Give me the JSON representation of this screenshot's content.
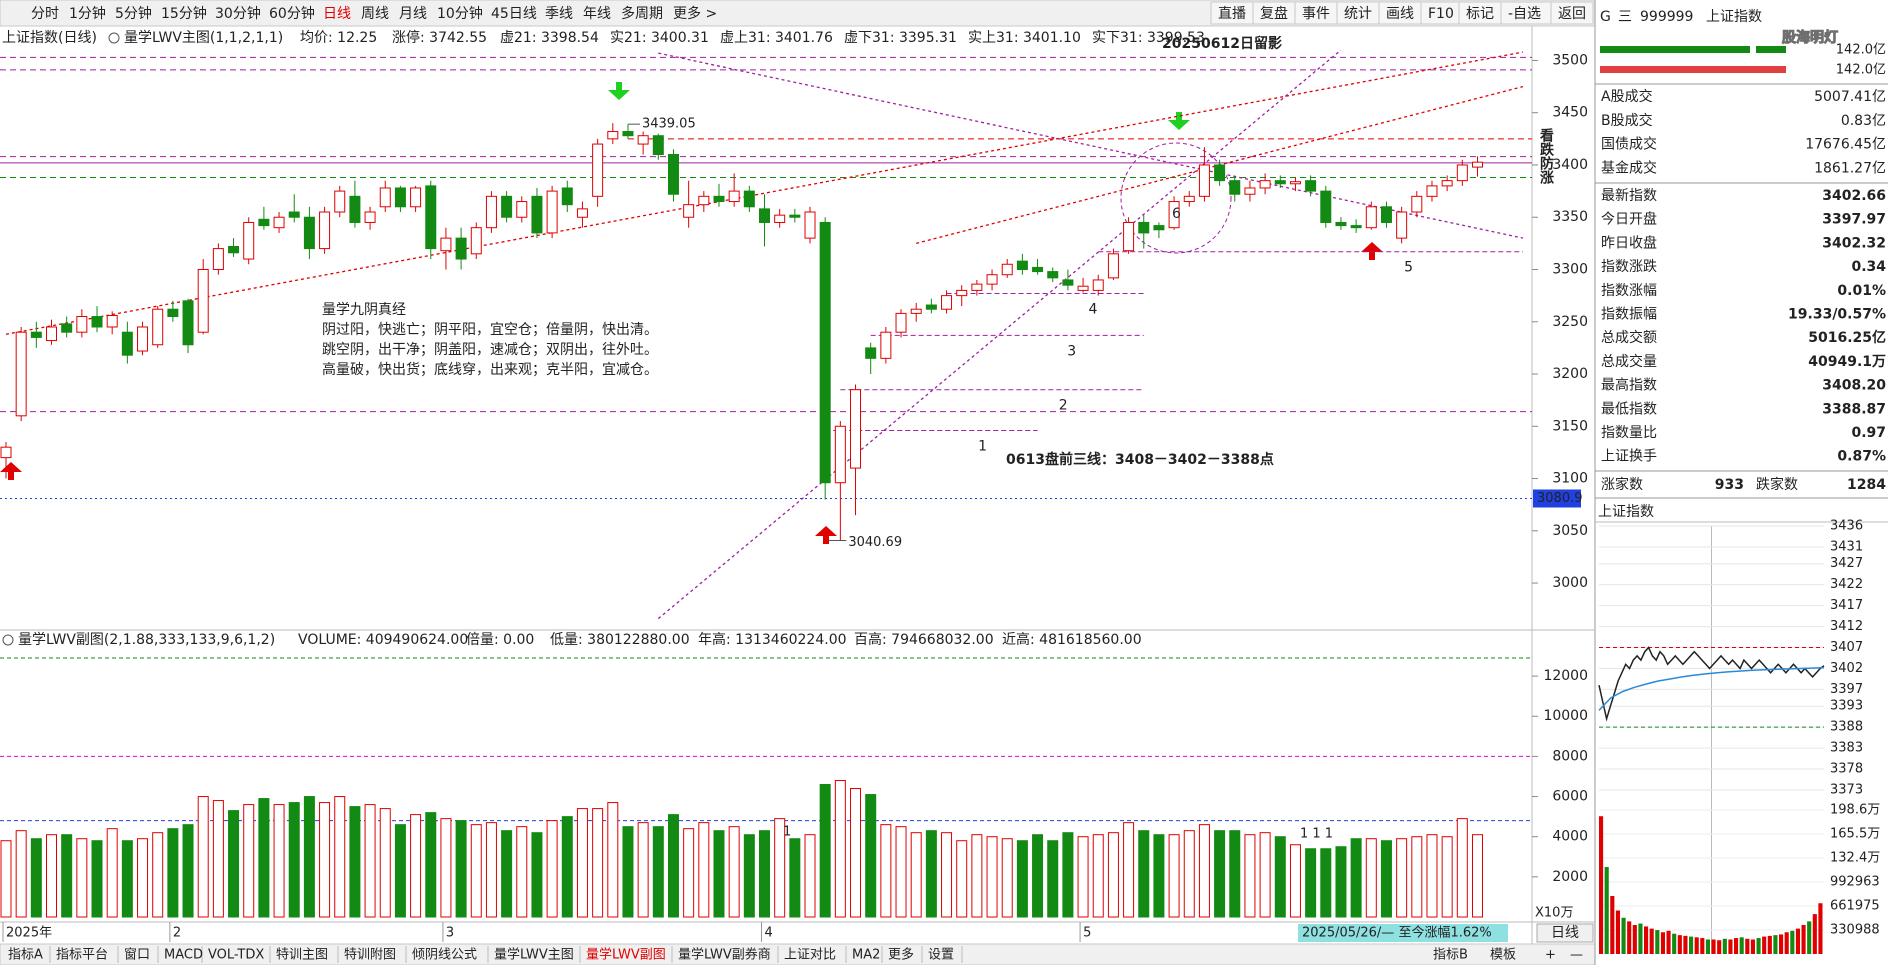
{
  "toolbar": {
    "periods": [
      "分时",
      "1分钟",
      "5分钟",
      "15分钟",
      "30分钟",
      "60分钟",
      "日线",
      "周线",
      "月线",
      "10分钟",
      "45日线",
      "季线",
      "年线",
      "多周期",
      "更多 >"
    ],
    "tools": [
      "直播",
      "复盘",
      "事件",
      "统计",
      "画线",
      "F10",
      "标记",
      "-自选",
      "返回"
    ]
  },
  "chart_header": {
    "title": "上证指数(日线)",
    "indicator": "量学LWV主图(1,1,2,1,1)",
    "items": [
      {
        "text": "均价: 12.25",
        "color": "#333333"
      },
      {
        "text": "涨停: 3742.55",
        "color": "#e00000"
      },
      {
        "text": "虚21: 3398.54",
        "color": "#0000e0"
      },
      {
        "text": "实21: 3400.31",
        "color": "#e00000"
      },
      {
        "text": "虚上31: 3401.76",
        "color": "#e000e0"
      },
      {
        "text": "虚下31: 3395.31",
        "color": "#0000e0"
      },
      {
        "text": "实上31: 3401.10",
        "color": "#e00000"
      },
      {
        "text": "实下31: 3399.53",
        "color": "#e000e0"
      }
    ]
  },
  "price_chart": {
    "type": "candlestick",
    "up_color": "#e00000",
    "down_color": "#138a13",
    "categories": [
      "2025年",
      null,
      null,
      null,
      null,
      null,
      null,
      null,
      null,
      null,
      null,
      "2",
      null,
      null,
      null,
      null,
      null,
      null,
      null,
      null,
      null,
      null,
      null,
      null,
      null,
      null,
      null,
      null,
      null,
      "3",
      null,
      null,
      null,
      null,
      null,
      null,
      null,
      null,
      null,
      null,
      null,
      null,
      null,
      null,
      null,
      null,
      null,
      null,
      null,
      null,
      "4",
      null,
      null,
      null,
      null,
      null,
      null,
      null,
      null,
      null,
      null,
      null,
      null,
      null,
      null,
      null,
      null,
      null,
      null,
      null,
      null,
      "5",
      null,
      null,
      null,
      null,
      null,
      null,
      null,
      null,
      null,
      null,
      null,
      null,
      null,
      null,
      null,
      null,
      null,
      null,
      null,
      null,
      null,
      null,
      null,
      null,
      null,
      null
    ],
    "ohlc": [
      [
        3120,
        3135,
        3100,
        3130
      ],
      [
        3160,
        3245,
        3155,
        3240
      ],
      [
        3240,
        3250,
        3225,
        3235
      ],
      [
        3232,
        3252,
        3228,
        3245
      ],
      [
        3248,
        3255,
        3235,
        3240
      ],
      [
        3240,
        3262,
        3235,
        3255
      ],
      [
        3255,
        3265,
        3240,
        3245
      ],
      [
        3245,
        3260,
        3238,
        3256
      ],
      [
        3240,
        3250,
        3210,
        3218
      ],
      [
        3222,
        3250,
        3218,
        3245
      ],
      [
        3228,
        3265,
        3225,
        3262
      ],
      [
        3262,
        3270,
        3250,
        3255
      ],
      [
        3270,
        3272,
        3220,
        3228
      ],
      [
        3240,
        3310,
        3238,
        3300
      ],
      [
        3300,
        3325,
        3295,
        3320
      ],
      [
        3322,
        3330,
        3312,
        3316
      ],
      [
        3310,
        3350,
        3305,
        3345
      ],
      [
        3348,
        3360,
        3338,
        3342
      ],
      [
        3340,
        3355,
        3335,
        3350
      ],
      [
        3355,
        3372,
        3345,
        3350
      ],
      [
        3350,
        3360,
        3310,
        3320
      ],
      [
        3320,
        3360,
        3315,
        3355
      ],
      [
        3355,
        3380,
        3350,
        3375
      ],
      [
        3370,
        3385,
        3340,
        3345
      ],
      [
        3345,
        3360,
        3338,
        3355
      ],
      [
        3360,
        3385,
        3355,
        3378
      ],
      [
        3378,
        3380,
        3355,
        3360
      ],
      [
        3360,
        3380,
        3355,
        3378
      ],
      [
        3380,
        3385,
        3310,
        3320
      ],
      [
        3318,
        3340,
        3300,
        3330
      ],
      [
        3330,
        3340,
        3300,
        3310
      ],
      [
        3315,
        3345,
        3310,
        3340
      ],
      [
        3340,
        3375,
        3335,
        3370
      ],
      [
        3370,
        3375,
        3345,
        3350
      ],
      [
        3350,
        3370,
        3345,
        3365
      ],
      [
        3370,
        3378,
        3330,
        3335
      ],
      [
        3335,
        3380,
        3330,
        3375
      ],
      [
        3378,
        3385,
        3355,
        3362
      ],
      [
        3350,
        3365,
        3340,
        3358
      ],
      [
        3370,
        3425,
        3360,
        3420
      ],
      [
        3425,
        3440,
        3420,
        3432
      ],
      [
        3432,
        3439.05,
        3425,
        3428
      ],
      [
        3420,
        3432,
        3410,
        3428
      ],
      [
        3428,
        3430,
        3405,
        3410
      ],
      [
        3410,
        3415,
        3365,
        3372
      ],
      [
        3350,
        3385,
        3340,
        3362
      ],
      [
        3362,
        3375,
        3355,
        3370
      ],
      [
        3370,
        3382,
        3360,
        3365
      ],
      [
        3365,
        3392,
        3360,
        3375
      ],
      [
        3375,
        3380,
        3355,
        3360
      ],
      [
        3358,
        3372,
        3322,
        3345
      ],
      [
        3345,
        3358,
        3340,
        3352
      ],
      [
        3352,
        3358,
        3345,
        3350
      ],
      [
        3330,
        3360,
        3325,
        3355
      ],
      [
        3345,
        3350,
        3080,
        3096
      ],
      [
        3096,
        3155,
        3040.69,
        3150
      ],
      [
        3110,
        3190,
        3065,
        3185
      ],
      [
        3225,
        3230,
        3200,
        3215
      ],
      [
        3215,
        3245,
        3210,
        3240
      ],
      [
        3240,
        3262,
        3235,
        3258
      ],
      [
        3258,
        3268,
        3250,
        3262
      ],
      [
        3266,
        3272,
        3258,
        3262
      ],
      [
        3262,
        3280,
        3258,
        3275
      ],
      [
        3275,
        3285,
        3265,
        3280
      ],
      [
        3280,
        3290,
        3275,
        3286
      ],
      [
        3286,
        3300,
        3280,
        3295
      ],
      [
        3295,
        3310,
        3292,
        3305
      ],
      [
        3308,
        3315,
        3295,
        3300
      ],
      [
        3302,
        3310,
        3295,
        3298
      ],
      [
        3298,
        3302,
        3288,
        3292
      ],
      [
        3290,
        3300,
        3280,
        3285
      ],
      [
        3280,
        3292,
        3278,
        3284
      ],
      [
        3280,
        3295,
        3275,
        3290
      ],
      [
        3292,
        3320,
        3290,
        3315
      ],
      [
        3318,
        3350,
        3315,
        3345
      ],
      [
        3345,
        3352,
        3320,
        3335
      ],
      [
        3342,
        3345,
        3330,
        3338
      ],
      [
        3340,
        3370,
        3338,
        3365
      ],
      [
        3365,
        3375,
        3360,
        3370
      ],
      [
        3370,
        3417,
        3365,
        3400
      ],
      [
        3400,
        3405,
        3380,
        3385
      ],
      [
        3385,
        3390,
        3365,
        3372
      ],
      [
        3372,
        3385,
        3365,
        3378
      ],
      [
        3378,
        3392,
        3372,
        3385
      ],
      [
        3385,
        3390,
        3378,
        3382
      ],
      [
        3382,
        3388,
        3375,
        3384
      ],
      [
        3385,
        3390,
        3370,
        3375
      ],
      [
        3375,
        3380,
        3340,
        3345
      ],
      [
        3345,
        3350,
        3338,
        3342
      ],
      [
        3342,
        3348,
        3335,
        3340
      ],
      [
        3340,
        3365,
        3338,
        3360
      ],
      [
        3360,
        3365,
        3340,
        3345
      ],
      [
        3330,
        3360,
        3325,
        3355
      ],
      [
        3355,
        3375,
        3350,
        3370
      ],
      [
        3370,
        3385,
        3365,
        3380
      ],
      [
        3380,
        3390,
        3375,
        3385
      ],
      [
        3385,
        3405,
        3380,
        3400
      ],
      [
        3397.97,
        3408.2,
        3388.87,
        3402.66
      ]
    ],
    "ylim": [
      2957,
      3510
    ],
    "yticks": [
      3000,
      3050,
      3100,
      3150,
      3200,
      3250,
      3300,
      3350,
      3400,
      3450,
      3500
    ],
    "hlines": [
      {
        "value": 3503,
        "color": "#a020a0",
        "style": "dashed"
      },
      {
        "value": 3491,
        "color": "#a020a0",
        "style": "dashed"
      },
      {
        "value": 3425,
        "color": "#e00000",
        "style": "dashed",
        "from": 41
      },
      {
        "value": 3408,
        "color": "#a020a0",
        "style": "dashed"
      },
      {
        "value": 3402,
        "color": "#a020a0",
        "style": "solid"
      },
      {
        "value": 3388,
        "color": "#138a13",
        "style": "dashed"
      },
      {
        "value": 3164,
        "color": "#a020a0",
        "style": "dashed"
      },
      {
        "value": 3080.9,
        "color": "#2040e0",
        "style": "dotted",
        "tagged": true
      }
    ],
    "levels": [
      {
        "label": "1",
        "value": 3146,
        "from": 54,
        "to": 68
      },
      {
        "label": "2",
        "value": 3185,
        "from": 55,
        "to": 75
      },
      {
        "label": "3",
        "value": 3237,
        "from": 57,
        "to": 75
      },
      {
        "label": "4",
        "value": 3277,
        "from": 62,
        "to": 75
      },
      {
        "label": "5",
        "value": 3317,
        "from": 72,
        "to": 100
      }
    ],
    "trendlines": [
      {
        "color": "#e00000",
        "points": [
          [
            0,
            3238
          ],
          [
            100,
            3508
          ]
        ]
      },
      {
        "color": "#e00000",
        "points": [
          [
            60,
            3325
          ],
          [
            100,
            3475
          ]
        ]
      },
      {
        "color": "#a020a0",
        "points": [
          [
            43,
            3507
          ],
          [
            100,
            3330
          ]
        ]
      },
      {
        "color": "#a020a0",
        "points": [
          [
            43,
            2966
          ],
          [
            88,
            3510
          ]
        ]
      }
    ],
    "annotations": {
      "stamp": "20250612日留影",
      "vertical": "看跌防涨",
      "forecast": "0613盘前三线：3408－3402－3388点",
      "verse_title": "量学九阴真经",
      "verse": [
        "阴过阳，快逃亡；阴平阳，宜空仓；倍量阴，快出清。",
        "跳空阴，出干净；阴盖阳，速减仓；双阴出，往外吐。",
        "高量破，快出货；底线穿，出来观；克半阳，宜减仓。"
      ],
      "circle_label": "6",
      "high_label": 3439.05,
      "low_label": 3040.69
    }
  },
  "volume_chart": {
    "type": "bar",
    "header_title": "量学LWV副图(2,1.88,333,133,9,6,1,2)",
    "header": [
      {
        "text": "VOLUME: 409490624.00",
        "color": "#333333"
      },
      {
        "text": "倍量: 0.00",
        "color": "#e00000"
      },
      {
        "text": "低量: 380122880.00",
        "color": "#e00000"
      },
      {
        "text": "年高: 1313460224.00",
        "color": "#138a13"
      },
      {
        "text": "百高: 794668032.00",
        "color": "#e000e0"
      },
      {
        "text": "近高: 481618560.00",
        "color": "#0000e0"
      }
    ],
    "values": [
      3800,
      4300,
      3900,
      4100,
      4100,
      3900,
      3800,
      4400,
      3800,
      3900,
      4200,
      4400,
      4600,
      6000,
      5800,
      5300,
      5600,
      5900,
      5600,
      5700,
      6000,
      5700,
      6000,
      5500,
      5600,
      5400,
      4600,
      5100,
      5200,
      4900,
      4800,
      4600,
      4700,
      4300,
      4500,
      4200,
      4800,
      5000,
      5400,
      5400,
      5700,
      4500,
      4700,
      4500,
      5100,
      4400,
      4700,
      4300,
      4500,
      4100,
      4300,
      4900,
      3900,
      4100,
      6600,
      6800,
      6400,
      6100,
      4600,
      4500,
      4200,
      4300,
      4200,
      3800,
      4100,
      4000,
      3900,
      3800,
      4100,
      3800,
      4200,
      4000,
      4100,
      4200,
      4700,
      4300,
      4100,
      4100,
      4300,
      4600,
      4300,
      4300,
      4100,
      4200,
      4000,
      3600,
      3400,
      3400,
      3500,
      3900,
      3900,
      3800,
      3900,
      4000,
      4100,
      4000,
      4900,
      4100
    ],
    "ylim": [
      0,
      13300
    ],
    "yticks": [
      2000,
      4000,
      6000,
      8000,
      10000,
      12000
    ],
    "hlines": [
      {
        "value": 12900,
        "color": "#138a13"
      },
      {
        "value": 8000,
        "color": "#e000e0"
      },
      {
        "value": 4800,
        "color": "#2040e0"
      }
    ],
    "unit": "X10万",
    "flags": [
      "1",
      "1 1 1"
    ]
  },
  "x_axis": {
    "range_label": "2025/05/26/— 至今涨幅1.62%",
    "period_button": "日线"
  },
  "side_panel": {
    "logo": "G",
    "menu": "三",
    "code": "999999",
    "name": "上证指数",
    "watermark": "股海明灯",
    "bar_values": [
      "142.0亿",
      "142.0亿"
    ],
    "turnover": [
      {
        "label": "A股成交",
        "value": "5007.41亿"
      },
      {
        "label": "B股成交",
        "value": "0.83亿"
      },
      {
        "label": "国债成交",
        "value": "17676.45亿"
      },
      {
        "label": "基金成交",
        "value": "1861.27亿"
      }
    ],
    "stats": [
      {
        "label": "最新指数",
        "value": "3402.66",
        "color": "#e00000"
      },
      {
        "label": "今日开盘",
        "value": "3397.97",
        "color": "#138a13"
      },
      {
        "label": "昨日收盘",
        "value": "3402.32",
        "color": "#111111"
      },
      {
        "label": "指数涨跌",
        "value": "0.34",
        "color": "#e00000"
      },
      {
        "label": "指数涨幅",
        "value": "0.01%",
        "color": "#e00000"
      },
      {
        "label": "指数振幅",
        "value": "19.33/0.57%",
        "color": "#111111"
      },
      {
        "label": "总成交额",
        "value": "5016.25亿",
        "color": "#111111"
      },
      {
        "label": "总成交量",
        "value": "40949.1万",
        "color": "#111111"
      },
      {
        "label": "最高指数",
        "value": "3408.20",
        "color": "#e00000"
      },
      {
        "label": "最低指数",
        "value": "3388.87",
        "color": "#138a13"
      },
      {
        "label": "指数量比",
        "value": "0.97",
        "color": "#e00000"
      },
      {
        "label": "上证换手",
        "value": "0.87%",
        "color": "#111111"
      }
    ],
    "breadth": {
      "up_label": "涨家数",
      "up": 933,
      "down_label": "跌家数",
      "down": 1284
    },
    "mini_title": "上证指数",
    "mini_chart": {
      "type": "line",
      "ylim": [
        3373,
        3436
      ],
      "yticks": [
        3436,
        3431,
        3427,
        3422,
        3417,
        3412,
        3407,
        3402,
        3397,
        3393,
        3388,
        3383,
        3378,
        3373
      ],
      "ytick_colors": [
        "#e00000",
        "#e00000",
        "#e00000",
        "#e00000",
        "#e00000",
        "#e00000",
        "#e00000",
        "#111111",
        "#138a13",
        "#138a13",
        "#138a13",
        "#138a13",
        "#138a13",
        "#138a13"
      ],
      "hlines": [
        {
          "value": 3407,
          "color": "#e00000"
        },
        {
          "value": 3388,
          "color": "#138a13"
        }
      ],
      "prices": [
        3398,
        3394,
        3390,
        3393,
        3396,
        3399,
        3401,
        3403,
        3402,
        3404,
        3405,
        3404,
        3406,
        3407,
        3405,
        3404,
        3406,
        3405,
        3403,
        3404,
        3405,
        3404,
        3403,
        3404,
        3405,
        3406,
        3405,
        3404,
        3403,
        3402,
        3403,
        3404,
        3405,
        3404,
        3403,
        3404,
        3403,
        3402,
        3404,
        3403,
        3402,
        3403,
        3404,
        3403,
        3402,
        3401,
        3402,
        3403,
        3402,
        3401,
        3402,
        3403,
        3402,
        3401,
        3402,
        3401,
        3400,
        3401,
        3402,
        3402.66
      ],
      "avg": [
        3392,
        3395,
        3396.5,
        3397.5,
        3398.3,
        3399,
        3399.5,
        3400,
        3400.4,
        3400.7,
        3401,
        3401.2,
        3401.4,
        3401.6,
        3401.7,
        3401.8,
        3401.9,
        3402,
        3402.1,
        3402.2
      ],
      "volumes": [
        1900000,
        1200000,
        800000,
        600000,
        500000,
        450000,
        400000,
        420000,
        380000,
        350000,
        330000,
        300000,
        320000,
        280000,
        260000,
        250000,
        240000,
        230000,
        220000,
        200000,
        200000,
        190000,
        210000,
        200000,
        220000,
        230000,
        210000,
        200000,
        220000,
        240000,
        250000,
        260000,
        270000,
        300000,
        320000,
        350000,
        400000,
        450000,
        550000,
        700000
      ],
      "vlim": [
        0,
        1986000
      ],
      "vticks": [
        {
          "value": 1986000,
          "label": "198.6万"
        },
        {
          "value": 1655000,
          "label": "165.5万"
        },
        {
          "value": 1324000,
          "label": "132.4万"
        },
        992963,
        661975,
        330988
      ]
    }
  },
  "bottom_tabs": {
    "left": [
      "指标A",
      "指标平台",
      "窗口",
      "MACD",
      "VOL-TDX",
      "特训主图",
      "特训附图",
      "倾阴线公式",
      "量学LWV主图",
      "量学LWV副图",
      "量学LWV副券商",
      "上证对比",
      "MA2",
      "更多",
      "设置"
    ],
    "right": [
      "指标B",
      "模板",
      "+",
      "—"
    ]
  }
}
